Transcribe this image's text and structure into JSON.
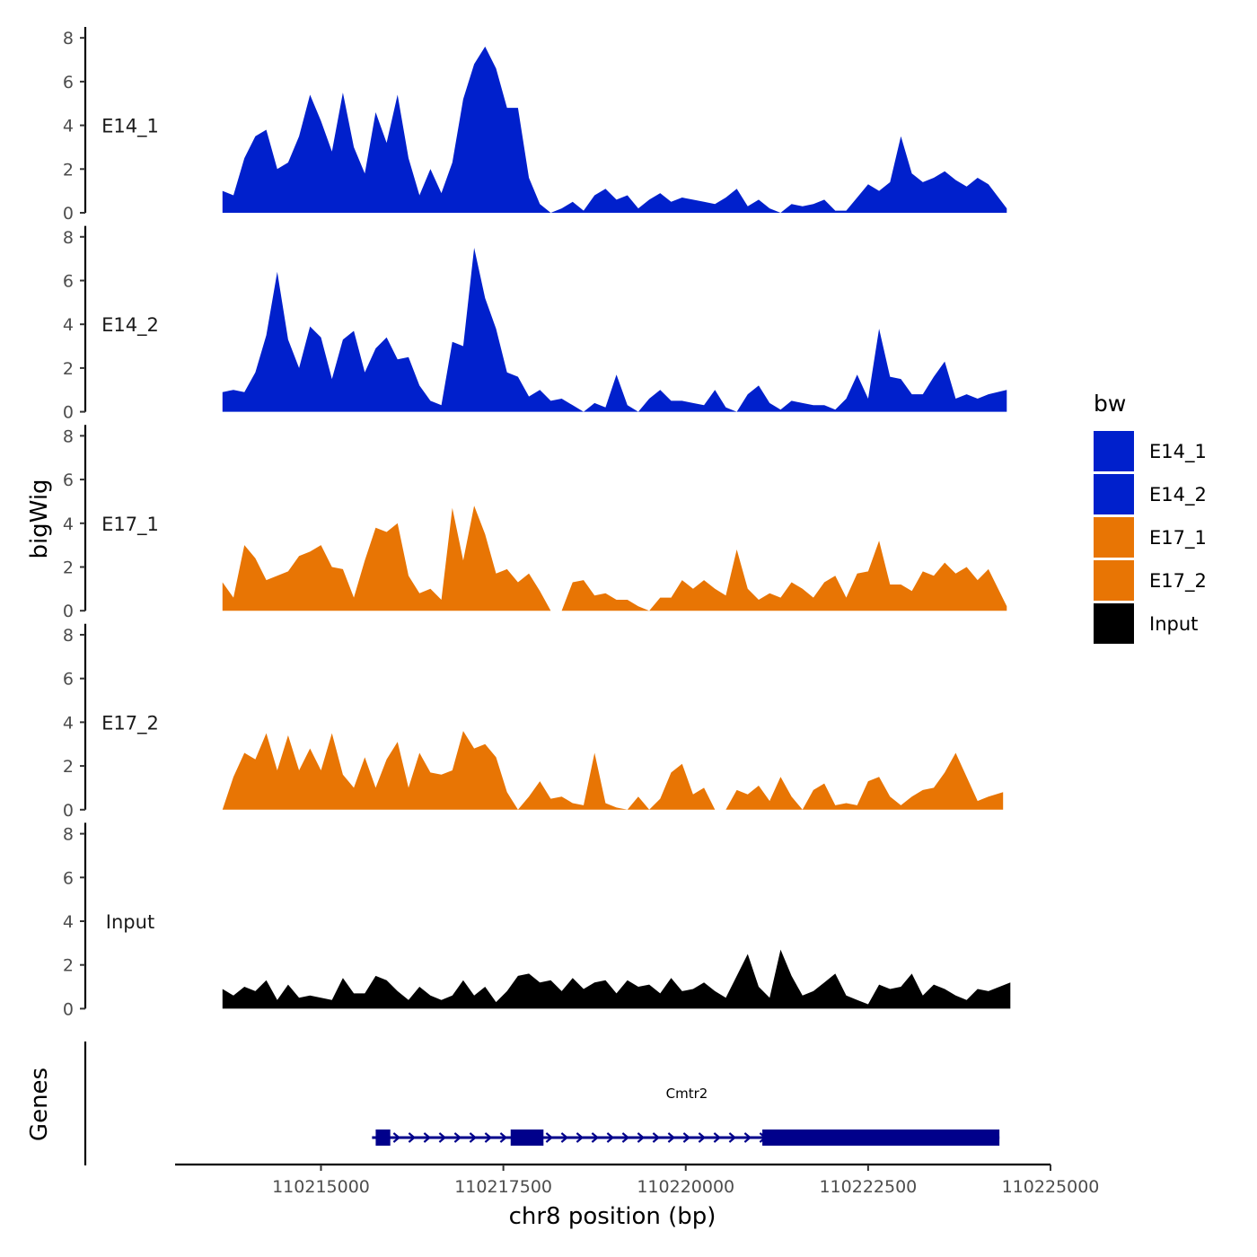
{
  "chart_data": {
    "type": "area",
    "ylabel": "bigWig",
    "xlabel": "chr8 position (bp)",
    "genes_label": "Genes",
    "xlim": [
      110213000,
      110225000
    ],
    "x_ticks": [
      110215000,
      110217500,
      110220000,
      110222500,
      110225000
    ],
    "x_tick_labels": [
      "110215000",
      "110217500",
      "110220000",
      "110222500",
      "110225000"
    ],
    "ylim": [
      0,
      8.5
    ],
    "y_ticks": [
      0,
      2,
      4,
      6,
      8
    ],
    "y_tick_labels": [
      "0",
      "2",
      "4",
      "6",
      "8"
    ],
    "legend": {
      "title": "bw",
      "items": [
        {
          "label": "E14_1",
          "color": "#0020cc"
        },
        {
          "label": "E14_2",
          "color": "#0020cc"
        },
        {
          "label": "E17_1",
          "color": "#e87504"
        },
        {
          "label": "E17_2",
          "color": "#e87504"
        },
        {
          "label": "Input",
          "color": "#000000"
        }
      ]
    },
    "series": [
      {
        "name": "E14_1",
        "color": "#0020cc",
        "x": [
          110213650,
          110213800,
          110213950,
          110214100,
          110214250,
          110214400,
          110214550,
          110214700,
          110214850,
          110215000,
          110215150,
          110215300,
          110215450,
          110215600,
          110215750,
          110215900,
          110216050,
          110216200,
          110216350,
          110216500,
          110216650,
          110216800,
          110216950,
          110217100,
          110217250,
          110217400,
          110217550,
          110217700,
          110217850,
          110218000,
          110218150,
          110218300,
          110218450,
          110218600,
          110218750,
          110218900,
          110219050,
          110219200,
          110219350,
          110219500,
          110219650,
          110219800,
          110219950,
          110220100,
          110220250,
          110220400,
          110220550,
          110220700,
          110220850,
          110221000,
          110221150,
          110221300,
          110221450,
          110221600,
          110221750,
          110221900,
          110222050,
          110222200,
          110222350,
          110222500,
          110222650,
          110222800,
          110222950,
          110223100,
          110223250,
          110223400,
          110223550,
          110223700,
          110223850,
          110224000,
          110224150,
          110224400
        ],
        "y": [
          1.0,
          0.8,
          2.5,
          3.5,
          3.8,
          2.0,
          2.3,
          3.5,
          5.4,
          4.2,
          2.8,
          5.5,
          3.0,
          1.8,
          4.6,
          3.2,
          5.4,
          2.5,
          0.8,
          2.0,
          0.9,
          2.3,
          5.2,
          6.8,
          7.6,
          6.6,
          4.8,
          4.8,
          1.6,
          0.4,
          0.0,
          0.2,
          0.5,
          0.1,
          0.8,
          1.1,
          0.6,
          0.8,
          0.2,
          0.6,
          0.9,
          0.5,
          0.7,
          0.6,
          0.5,
          0.4,
          0.7,
          1.1,
          0.3,
          0.6,
          0.2,
          0.0,
          0.4,
          0.3,
          0.4,
          0.6,
          0.1,
          0.1,
          0.7,
          1.3,
          1.0,
          1.4,
          3.5,
          1.8,
          1.4,
          1.6,
          1.9,
          1.5,
          1.2,
          1.6,
          1.3,
          0.2
        ]
      },
      {
        "name": "E14_2",
        "color": "#0020cc",
        "x": [
          110213650,
          110213800,
          110213950,
          110214100,
          110214250,
          110214400,
          110214550,
          110214700,
          110214850,
          110215000,
          110215150,
          110215300,
          110215450,
          110215600,
          110215750,
          110215900,
          110216050,
          110216200,
          110216350,
          110216500,
          110216650,
          110216800,
          110216950,
          110217100,
          110217250,
          110217400,
          110217550,
          110217700,
          110217850,
          110218000,
          110218150,
          110218300,
          110218450,
          110218600,
          110218750,
          110218900,
          110219050,
          110219200,
          110219350,
          110219500,
          110219650,
          110219800,
          110219950,
          110220100,
          110220250,
          110220400,
          110220550,
          110220700,
          110220850,
          110221000,
          110221150,
          110221300,
          110221450,
          110221600,
          110221750,
          110221900,
          110222050,
          110222200,
          110222350,
          110222500,
          110222650,
          110222800,
          110222950,
          110223100,
          110223250,
          110223400,
          110223550,
          110223700,
          110223850,
          110224000,
          110224150,
          110224400
        ],
        "y": [
          0.9,
          1.0,
          0.9,
          1.8,
          3.5,
          6.4,
          3.3,
          2.0,
          3.9,
          3.4,
          1.5,
          3.3,
          3.7,
          1.8,
          2.9,
          3.4,
          2.4,
          2.5,
          1.2,
          0.5,
          0.3,
          3.2,
          3.0,
          7.5,
          5.2,
          3.8,
          1.8,
          1.6,
          0.7,
          1.0,
          0.5,
          0.6,
          0.3,
          0.0,
          0.4,
          0.2,
          1.7,
          0.3,
          0.0,
          0.6,
          1.0,
          0.5,
          0.5,
          0.4,
          0.3,
          1.0,
          0.2,
          0.0,
          0.8,
          1.2,
          0.4,
          0.1,
          0.5,
          0.4,
          0.3,
          0.3,
          0.1,
          0.6,
          1.7,
          0.6,
          3.8,
          1.6,
          1.5,
          0.8,
          0.8,
          1.6,
          2.3,
          0.6,
          0.8,
          0.6,
          0.8,
          1.0
        ]
      },
      {
        "name": "E17_1",
        "color": "#e87504",
        "x": [
          110213650,
          110213800,
          110213950,
          110214100,
          110214250,
          110214400,
          110214550,
          110214700,
          110214850,
          110215000,
          110215150,
          110215300,
          110215450,
          110215600,
          110215750,
          110215900,
          110216050,
          110216200,
          110216350,
          110216500,
          110216650,
          110216800,
          110216950,
          110217100,
          110217250,
          110217400,
          110217550,
          110217700,
          110217850,
          110218000,
          110218150,
          110218300,
          110218450,
          110218600,
          110218750,
          110218900,
          110219050,
          110219200,
          110219350,
          110219500,
          110219650,
          110219800,
          110219950,
          110220100,
          110220250,
          110220400,
          110220550,
          110220700,
          110220850,
          110221000,
          110221150,
          110221300,
          110221450,
          110221600,
          110221750,
          110221900,
          110222050,
          110222200,
          110222350,
          110222500,
          110222650,
          110222800,
          110222950,
          110223100,
          110223250,
          110223400,
          110223550,
          110223700,
          110223850,
          110224000,
          110224150,
          110224400
        ],
        "y": [
          1.3,
          0.6,
          3.0,
          2.4,
          1.4,
          1.6,
          1.8,
          2.5,
          2.7,
          3.0,
          2.0,
          1.9,
          0.6,
          2.3,
          3.8,
          3.6,
          4.0,
          1.6,
          0.8,
          1.0,
          0.5,
          4.7,
          2.3,
          4.8,
          3.5,
          1.7,
          1.9,
          1.3,
          1.7,
          0.9,
          0.0,
          0.0,
          1.3,
          1.4,
          0.7,
          0.8,
          0.5,
          0.5,
          0.2,
          0.0,
          0.6,
          0.6,
          1.4,
          1.0,
          1.4,
          1.0,
          0.7,
          2.8,
          1.0,
          0.5,
          0.8,
          0.6,
          1.3,
          1.0,
          0.6,
          1.3,
          1.6,
          0.6,
          1.7,
          1.8,
          3.2,
          1.2,
          1.2,
          0.9,
          1.8,
          1.6,
          2.2,
          1.7,
          2.0,
          1.4,
          1.9,
          0.2
        ]
      },
      {
        "name": "E17_2",
        "color": "#e87504",
        "x": [
          110213650,
          110213800,
          110213950,
          110214100,
          110214250,
          110214400,
          110214550,
          110214700,
          110214850,
          110215000,
          110215150,
          110215300,
          110215450,
          110215600,
          110215750,
          110215900,
          110216050,
          110216200,
          110216350,
          110216500,
          110216650,
          110216800,
          110216950,
          110217100,
          110217250,
          110217400,
          110217550,
          110217700,
          110217850,
          110218000,
          110218150,
          110218300,
          110218450,
          110218600,
          110218750,
          110218900,
          110219050,
          110219200,
          110219350,
          110219500,
          110219650,
          110219800,
          110219950,
          110220100,
          110220250,
          110220400,
          110220550,
          110220700,
          110220850,
          110221000,
          110221150,
          110221300,
          110221450,
          110221600,
          110221750,
          110221900,
          110222050,
          110222200,
          110222350,
          110222500,
          110222650,
          110222800,
          110222950,
          110223100,
          110223250,
          110223400,
          110223550,
          110223700,
          110223850,
          110224000,
          110224150,
          110224350
        ],
        "y": [
          0.0,
          1.5,
          2.6,
          2.3,
          3.5,
          1.8,
          3.4,
          1.8,
          2.8,
          1.8,
          3.5,
          1.6,
          1.0,
          2.4,
          1.0,
          2.3,
          3.1,
          1.0,
          2.6,
          1.7,
          1.6,
          1.8,
          3.6,
          2.8,
          3.0,
          2.4,
          0.8,
          0.0,
          0.6,
          1.3,
          0.5,
          0.6,
          0.3,
          0.2,
          2.6,
          0.3,
          0.1,
          0.0,
          0.6,
          0.0,
          0.5,
          1.7,
          2.1,
          0.7,
          1.0,
          0.0,
          0.0,
          0.9,
          0.7,
          1.1,
          0.4,
          1.5,
          0.6,
          0.0,
          0.9,
          1.2,
          0.2,
          0.3,
          0.2,
          1.3,
          1.5,
          0.6,
          0.2,
          0.6,
          0.9,
          1.0,
          1.7,
          2.6,
          1.5,
          0.4,
          0.6,
          0.8
        ]
      },
      {
        "name": "Input",
        "color": "#000000",
        "x": [
          110213650,
          110213800,
          110213950,
          110214100,
          110214250,
          110214400,
          110214550,
          110214700,
          110214850,
          110215000,
          110215150,
          110215300,
          110215450,
          110215600,
          110215750,
          110215900,
          110216050,
          110216200,
          110216350,
          110216500,
          110216650,
          110216800,
          110216950,
          110217100,
          110217250,
          110217400,
          110217550,
          110217700,
          110217850,
          110218000,
          110218150,
          110218300,
          110218450,
          110218600,
          110218750,
          110218900,
          110219050,
          110219200,
          110219350,
          110219500,
          110219650,
          110219800,
          110219950,
          110220100,
          110220250,
          110220400,
          110220550,
          110220700,
          110220850,
          110221000,
          110221150,
          110221300,
          110221450,
          110221600,
          110221750,
          110221900,
          110222050,
          110222200,
          110222350,
          110222500,
          110222650,
          110222800,
          110222950,
          110223100,
          110223250,
          110223400,
          110223550,
          110223700,
          110223850,
          110224000,
          110224150,
          110224450
        ],
        "y": [
          0.9,
          0.6,
          1.0,
          0.8,
          1.3,
          0.4,
          1.1,
          0.5,
          0.6,
          0.5,
          0.4,
          1.4,
          0.7,
          0.7,
          1.5,
          1.3,
          0.8,
          0.4,
          1.0,
          0.6,
          0.4,
          0.6,
          1.3,
          0.6,
          1.0,
          0.3,
          0.8,
          1.5,
          1.6,
          1.2,
          1.3,
          0.8,
          1.4,
          0.9,
          1.2,
          1.3,
          0.7,
          1.3,
          1.0,
          1.1,
          0.7,
          1.4,
          0.8,
          0.9,
          1.2,
          0.8,
          0.5,
          1.5,
          2.5,
          1.0,
          0.5,
          2.7,
          1.5,
          0.6,
          0.8,
          1.2,
          1.6,
          0.6,
          0.4,
          0.2,
          1.1,
          0.9,
          1.0,
          1.6,
          0.6,
          1.1,
          0.9,
          0.6,
          0.4,
          0.9,
          0.8,
          1.2
        ]
      }
    ],
    "gene": {
      "name": "Cmtr2",
      "strand": "+",
      "start": 110215700,
      "end": 110224300,
      "exons": [
        [
          110215750,
          110215950
        ],
        [
          110217600,
          110218050
        ],
        [
          110221050,
          110224300
        ]
      ]
    }
  }
}
